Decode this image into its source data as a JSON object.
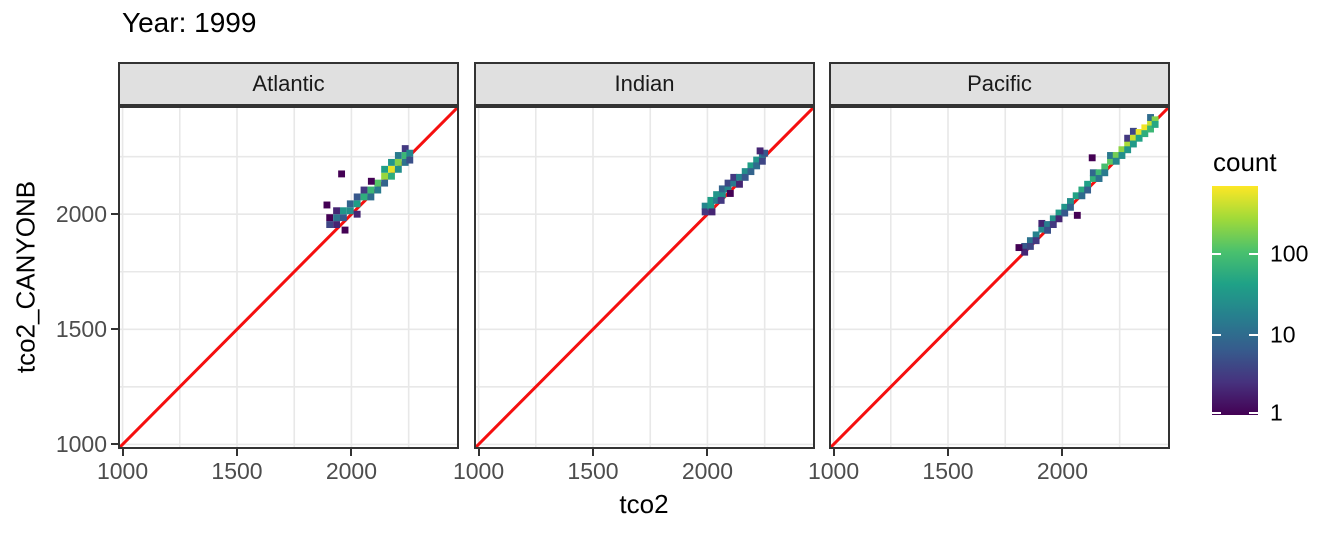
{
  "title": "Year: 1999",
  "axes": {
    "x_label": "tco2",
    "y_label": "tco2_CANYONB",
    "x_ticks": [
      1000,
      1500,
      2000
    ],
    "y_ticks": [
      1000,
      1500,
      2000
    ],
    "range": [
      980,
      2470
    ],
    "gridlines": [
      1000,
      1250,
      1500,
      1750,
      2000,
      2250
    ]
  },
  "identity_line": {
    "color": "#f50f0f"
  },
  "legend": {
    "title": "count",
    "scale": "log10",
    "domain": [
      1,
      700
    ],
    "ticks": [
      {
        "label": "100",
        "value": 100
      },
      {
        "label": "10",
        "value": 10
      },
      {
        "label": "1",
        "value": 1
      }
    ],
    "palette": [
      "#440154",
      "#46327e",
      "#365c8d",
      "#277f8e",
      "#1fa187",
      "#4ac16d",
      "#a0da39",
      "#fde725"
    ]
  },
  "style_colors": {
    "grid": "#e8e8e8",
    "panel_border": "#333333",
    "strip_fill": "#e0e0e0",
    "tick_label": "#4d4d4d",
    "text": "#000000"
  },
  "chart_data": {
    "type": "heatmap",
    "subtype": "geom_bin2d",
    "binwidth": 30,
    "x": "tco2",
    "y": "tco2_CANYONB",
    "facets": [
      {
        "name": "Atlantic",
        "bins": [
          [
            1905,
            1955,
            4
          ],
          [
            1905,
            1985,
            1
          ],
          [
            1935,
            1955,
            2
          ],
          [
            1935,
            1985,
            12
          ],
          [
            1935,
            2015,
            2
          ],
          [
            1965,
            1985,
            6
          ],
          [
            1965,
            2015,
            30
          ],
          [
            1995,
            2015,
            25
          ],
          [
            1995,
            2045,
            8
          ],
          [
            2025,
            2045,
            40
          ],
          [
            2025,
            2075,
            6
          ],
          [
            2025,
            2000,
            2
          ],
          [
            2055,
            2075,
            60
          ],
          [
            2055,
            2105,
            3
          ],
          [
            2085,
            2105,
            80
          ],
          [
            2085,
            2075,
            10
          ],
          [
            2115,
            2135,
            120
          ],
          [
            2115,
            2105,
            15
          ],
          [
            2145,
            2165,
            250
          ],
          [
            2145,
            2195,
            40
          ],
          [
            2145,
            2135,
            8
          ],
          [
            2175,
            2195,
            550
          ],
          [
            2175,
            2225,
            30
          ],
          [
            2175,
            2165,
            60
          ],
          [
            2205,
            2225,
            200
          ],
          [
            2205,
            2255,
            15
          ],
          [
            2205,
            2195,
            25
          ],
          [
            2235,
            2255,
            80
          ],
          [
            2235,
            2225,
            12
          ],
          [
            2235,
            2285,
            3
          ],
          [
            2255,
            2265,
            20
          ],
          [
            2255,
            2235,
            5
          ],
          [
            1893,
            2040,
            1
          ],
          [
            1957,
            2175,
            1
          ],
          [
            1972,
            1931,
            1
          ],
          [
            2087,
            2143,
            1
          ]
        ]
      },
      {
        "name": "Indian",
        "bins": [
          [
            1990,
            2035,
            20
          ],
          [
            1990,
            2010,
            3
          ],
          [
            2015,
            2035,
            35
          ],
          [
            2015,
            2060,
            40
          ],
          [
            2020,
            2010,
            2
          ],
          [
            2040,
            2060,
            15
          ],
          [
            2040,
            2085,
            30
          ],
          [
            2065,
            2085,
            25
          ],
          [
            2065,
            2110,
            8
          ],
          [
            2060,
            2060,
            3
          ],
          [
            2090,
            2110,
            20
          ],
          [
            2090,
            2135,
            4
          ],
          [
            2115,
            2135,
            15
          ],
          [
            2115,
            2160,
            3
          ],
          [
            2100,
            2090,
            1
          ],
          [
            2140,
            2160,
            18
          ],
          [
            2140,
            2130,
            2
          ],
          [
            2165,
            2185,
            25
          ],
          [
            2165,
            2160,
            6
          ],
          [
            2190,
            2210,
            40
          ],
          [
            2190,
            2185,
            8
          ],
          [
            2215,
            2235,
            30
          ],
          [
            2215,
            2210,
            10
          ],
          [
            2240,
            2255,
            15
          ],
          [
            2240,
            2230,
            4
          ],
          [
            2250,
            2265,
            6
          ],
          [
            2230,
            2275,
            2
          ]
        ]
      },
      {
        "name": "Pacific",
        "bins": [
          [
            1835,
            1860,
            6
          ],
          [
            1835,
            1835,
            2
          ],
          [
            1860,
            1885,
            12
          ],
          [
            1860,
            1860,
            4
          ],
          [
            1885,
            1910,
            18
          ],
          [
            1885,
            1885,
            3
          ],
          [
            1910,
            1935,
            22
          ],
          [
            1910,
            1960,
            2
          ],
          [
            1935,
            1955,
            15
          ],
          [
            1935,
            1930,
            5
          ],
          [
            1960,
            1980,
            28
          ],
          [
            1960,
            1955,
            3
          ],
          [
            1985,
            2005,
            35
          ],
          [
            1985,
            1980,
            2
          ],
          [
            2010,
            2030,
            30
          ],
          [
            2010,
            2005,
            6
          ],
          [
            2035,
            2055,
            25
          ],
          [
            2035,
            2030,
            8
          ],
          [
            2060,
            2080,
            45
          ],
          [
            2065,
            1995,
            1
          ],
          [
            2085,
            2105,
            55
          ],
          [
            2085,
            2080,
            10
          ],
          [
            2110,
            2130,
            40
          ],
          [
            2110,
            2105,
            7
          ],
          [
            2135,
            2155,
            65
          ],
          [
            2135,
            2180,
            9
          ],
          [
            2160,
            2180,
            85
          ],
          [
            2160,
            2155,
            12
          ],
          [
            2185,
            2205,
            100
          ],
          [
            2185,
            2180,
            15
          ],
          [
            2210,
            2230,
            130
          ],
          [
            2210,
            2255,
            14
          ],
          [
            2235,
            2255,
            170
          ],
          [
            2235,
            2230,
            20
          ],
          [
            2260,
            2280,
            220
          ],
          [
            2260,
            2255,
            25
          ],
          [
            2285,
            2305,
            300
          ],
          [
            2285,
            2280,
            30
          ],
          [
            2285,
            2330,
            3
          ],
          [
            2310,
            2330,
            420
          ],
          [
            2310,
            2305,
            35
          ],
          [
            2310,
            2360,
            4
          ],
          [
            2335,
            2355,
            560
          ],
          [
            2335,
            2330,
            45
          ],
          [
            2360,
            2375,
            620
          ],
          [
            2360,
            2350,
            60
          ],
          [
            2385,
            2395,
            400
          ],
          [
            2385,
            2370,
            80
          ],
          [
            2385,
            2420,
            10
          ],
          [
            2405,
            2410,
            200
          ],
          [
            2405,
            2390,
            50
          ],
          [
            1810,
            1855,
            1
          ],
          [
            2130,
            2245,
            1
          ]
        ]
      }
    ]
  }
}
